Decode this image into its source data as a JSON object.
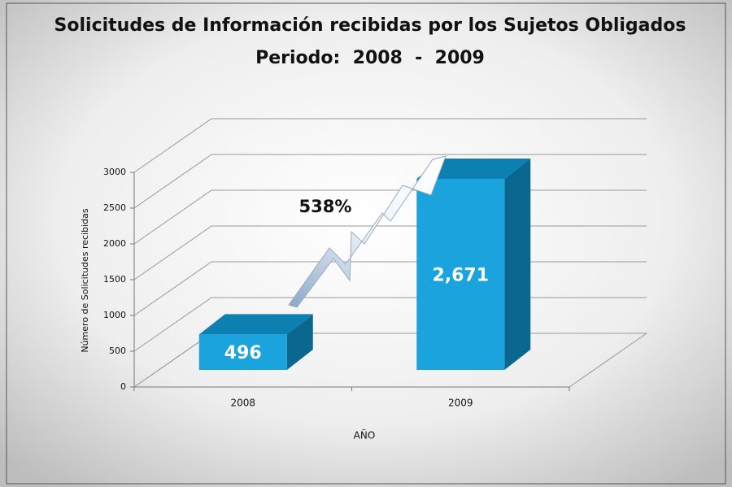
{
  "chart_data": {
    "type": "bar3d",
    "title": "Solicitudes de Información recibidas por los Sujetos Obligados",
    "subtitle": "Periodo:  2008  -  2009",
    "annotation": "538%",
    "x_label": "AÑO",
    "y_label": "Número de Solicitudes recibidas",
    "categories": [
      "2008",
      "2009"
    ],
    "values": [
      496,
      2671
    ],
    "value_labels": [
      "496",
      "2,671"
    ],
    "color": "#1aa3dc",
    "ylim": [
      0,
      3000
    ],
    "yticks": [
      0,
      500,
      1000,
      1500,
      2000,
      2500,
      3000
    ],
    "grid": true
  }
}
